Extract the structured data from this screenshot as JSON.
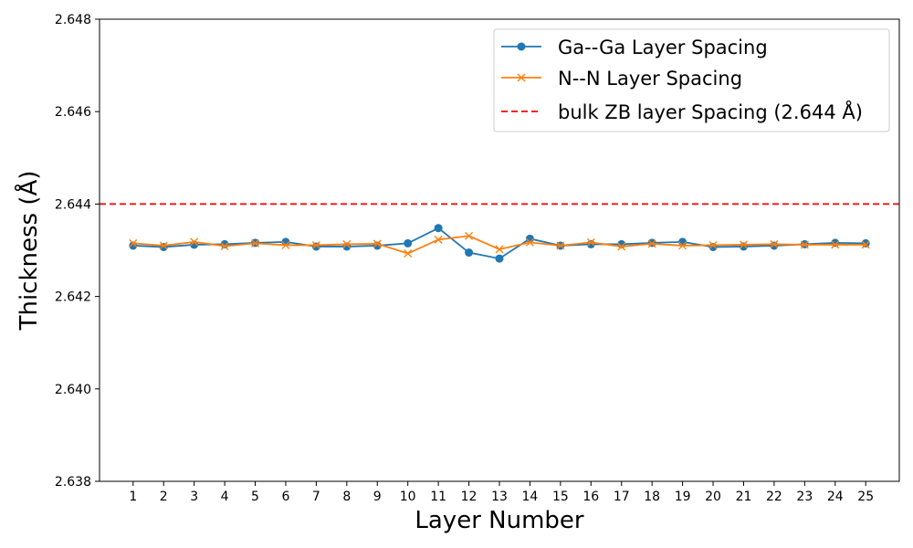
{
  "chart_data": {
    "type": "line",
    "title": "",
    "xlabel": "Layer Number",
    "ylabel": "Thickness (Å)",
    "x": [
      1,
      2,
      3,
      4,
      5,
      6,
      7,
      8,
      9,
      10,
      11,
      12,
      13,
      14,
      15,
      16,
      17,
      18,
      19,
      20,
      21,
      22,
      23,
      24,
      25
    ],
    "xlim": [
      -0.1,
      26.1
    ],
    "ylim": [
      2.638,
      2.648
    ],
    "yticks": [
      "2.638",
      "2.640",
      "2.642",
      "2.644",
      "2.646",
      "2.648"
    ],
    "grid": false,
    "legend_position": "top-right",
    "series": [
      {
        "name": "Ga--Ga Layer Spacing",
        "color": "#1f77b4",
        "marker": "circle",
        "values": [
          2.6431,
          2.64307,
          2.64312,
          2.64313,
          2.64316,
          2.64318,
          2.64308,
          2.64308,
          2.6431,
          2.64315,
          2.64348,
          2.64295,
          2.64282,
          2.64325,
          2.6431,
          2.64313,
          2.64313,
          2.64316,
          2.64318,
          2.64307,
          2.64308,
          2.6431,
          2.64313,
          2.64316,
          2.64315
        ]
      },
      {
        "name": "N--N Layer Spacing",
        "color": "#ff7f0e",
        "marker": "x",
        "values": [
          2.64315,
          2.6431,
          2.64318,
          2.64309,
          2.64315,
          2.64311,
          2.64311,
          2.64313,
          2.64314,
          2.64293,
          2.64323,
          2.64331,
          2.64302,
          2.64317,
          2.6431,
          2.64317,
          2.64308,
          2.64314,
          2.6431,
          2.64311,
          2.64312,
          2.64313,
          2.64312,
          2.64312,
          2.64312
        ]
      }
    ],
    "reference_line": {
      "name": "bulk ZB layer Spacing (2.644 Å)",
      "value": 2.644,
      "color": "#ff0000",
      "style": "dashed"
    }
  }
}
